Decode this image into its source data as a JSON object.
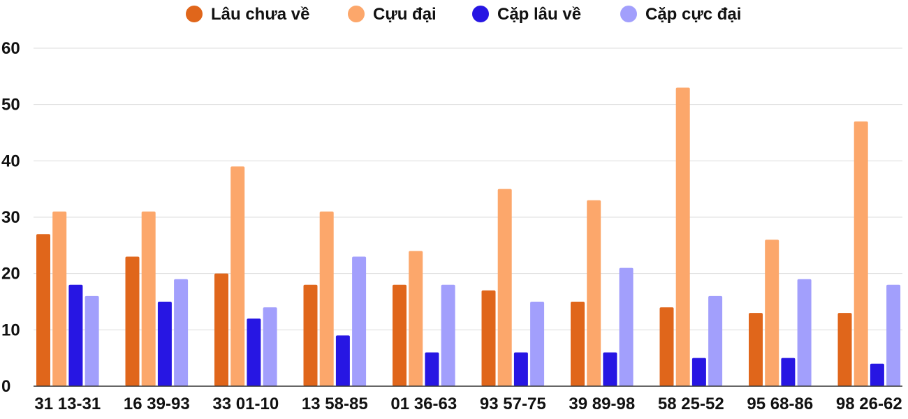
{
  "chart_data": {
    "type": "bar",
    "categories": [
      "31 13-31",
      "16 39-93",
      "33 01-10",
      "13 58-85",
      "01 36-63",
      "93 57-75",
      "39 89-98",
      "58 25-52",
      "95 68-86",
      "98 26-62"
    ],
    "series": [
      {
        "name": "Lâu chưa về",
        "color": "#e0661b",
        "values": [
          27,
          23,
          20,
          18,
          18,
          17,
          15,
          14,
          13,
          13
        ]
      },
      {
        "name": "Cựu đại",
        "color": "#fca76b",
        "values": [
          31,
          31,
          39,
          31,
          24,
          35,
          33,
          53,
          26,
          47
        ]
      },
      {
        "name": "Cặp lâu về",
        "color": "#2716e3",
        "values": [
          18,
          15,
          12,
          9,
          6,
          6,
          6,
          5,
          5,
          4
        ]
      },
      {
        "name": "Cặp cực đại",
        "color": "#a29ffc",
        "values": [
          16,
          19,
          14,
          23,
          18,
          15,
          21,
          16,
          19,
          18
        ]
      }
    ],
    "ylim": [
      0,
      60
    ],
    "yticks": [
      0,
      10,
      20,
      30,
      40,
      50,
      60
    ],
    "grid": true,
    "legend_position": "top-center",
    "xlabel": "",
    "ylabel": "",
    "title": ""
  }
}
